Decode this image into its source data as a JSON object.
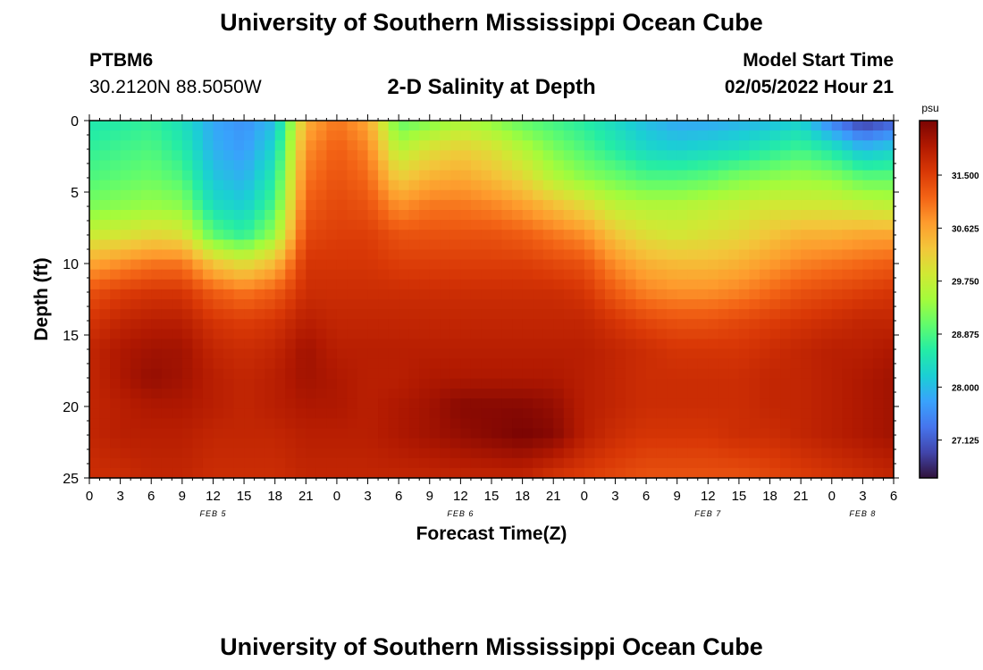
{
  "header": {
    "title": "University of Southern Mississippi Ocean Cube",
    "station_id": "PTBM6",
    "coordinates": "30.2120N  88.5050W",
    "model_start_label": "Model Start Time",
    "model_start_value": "02/05/2022 Hour 21"
  },
  "footer": {
    "title": "University of Southern Mississippi Ocean Cube"
  },
  "colors": {
    "colormap": [
      "#30123b",
      "#4145ab",
      "#4675ed",
      "#39a2fc",
      "#1bcfd4",
      "#24eca6",
      "#61fc6c",
      "#a4fc3b",
      "#d1e834",
      "#f3c63a",
      "#fe9b2d",
      "#f36315",
      "#d93806",
      "#b11901",
      "#7a0403"
    ]
  },
  "chart_data": {
    "type": "heatmap",
    "title": "2-D Salinity at Depth",
    "xlabel": "Forecast Time(Z)",
    "ylabel": "Depth (ft)",
    "x_tick_labels": [
      "0",
      "3",
      "6",
      "9",
      "12",
      "15",
      "18",
      "21",
      "0",
      "3",
      "6",
      "9",
      "12",
      "15",
      "18",
      "21",
      "0",
      "3",
      "6",
      "9",
      "12",
      "15",
      "18",
      "21",
      "0",
      "3",
      "6"
    ],
    "x_range_hours": [
      0,
      78
    ],
    "date_labels": [
      {
        "text": "FEB 5",
        "hour": 12
      },
      {
        "text": "FEB 6",
        "hour": 36
      },
      {
        "text": "FEB 7",
        "hour": 60
      },
      {
        "text": "FEB 8",
        "hour": 75
      }
    ],
    "y_range_ft": [
      0,
      25
    ],
    "y_ticks": [
      0,
      5,
      10,
      15,
      20,
      25
    ],
    "colorbar": {
      "unit": "psu",
      "range": [
        26.5,
        32.4
      ],
      "ticks": [
        "31.500",
        "30.625",
        "29.750",
        "28.875",
        "28.000",
        "27.125"
      ],
      "tick_values": [
        31.5,
        30.625,
        29.75,
        28.875,
        28.0,
        27.125
      ]
    },
    "salinity_grid": {
      "x_hours": [
        0,
        3,
        6,
        9,
        12,
        15,
        18,
        21,
        24,
        27,
        30,
        33,
        36,
        39,
        42,
        45,
        48,
        51,
        54,
        57,
        60,
        63,
        66,
        69,
        72,
        75,
        78
      ],
      "depths_ft": [
        0,
        2,
        4,
        6,
        8,
        10,
        12,
        14,
        16,
        18,
        20,
        22,
        25
      ],
      "values": [
        [
          28.5,
          28.6,
          28.7,
          28.4,
          27.8,
          27.6,
          28.0,
          30.5,
          31.0,
          30.6,
          29.0,
          29.2,
          29.5,
          29.3,
          29.0,
          28.8,
          28.6,
          28.3,
          28.0,
          27.8,
          27.8,
          27.9,
          28.0,
          28.2,
          27.4,
          26.8,
          27.1
        ],
        [
          28.7,
          28.8,
          28.9,
          28.6,
          27.9,
          27.7,
          28.3,
          30.8,
          31.2,
          30.9,
          29.6,
          30.0,
          30.2,
          30.0,
          29.6,
          29.2,
          28.9,
          28.6,
          28.3,
          28.2,
          28.3,
          28.4,
          28.6,
          28.8,
          28.5,
          28.0,
          28.2
        ],
        [
          28.9,
          29.0,
          29.1,
          28.9,
          28.1,
          27.9,
          28.6,
          31.0,
          31.3,
          31.1,
          30.2,
          30.5,
          30.6,
          30.4,
          30.1,
          29.6,
          29.3,
          29.1,
          28.9,
          28.9,
          29.0,
          29.2,
          29.3,
          29.4,
          29.3,
          29.0,
          29.0
        ],
        [
          29.2,
          29.3,
          29.4,
          29.3,
          28.4,
          28.2,
          28.9,
          31.2,
          31.4,
          31.3,
          30.8,
          31.0,
          31.0,
          30.9,
          30.7,
          30.4,
          30.1,
          29.7,
          29.6,
          29.6,
          29.7,
          29.8,
          29.9,
          29.9,
          29.9,
          29.8,
          29.7
        ],
        [
          29.8,
          29.9,
          30.1,
          30.0,
          29.0,
          28.7,
          29.4,
          31.4,
          31.5,
          31.5,
          31.3,
          31.3,
          31.3,
          31.3,
          31.2,
          31.0,
          30.8,
          30.3,
          30.0,
          29.9,
          30.0,
          30.1,
          30.3,
          30.5,
          30.5,
          30.6,
          30.6
        ],
        [
          30.6,
          30.8,
          31.0,
          31.0,
          30.3,
          30.0,
          30.4,
          31.6,
          31.6,
          31.6,
          31.5,
          31.5,
          31.5,
          31.5,
          31.5,
          31.4,
          31.3,
          30.8,
          30.5,
          30.4,
          30.4,
          30.5,
          30.7,
          30.9,
          31.0,
          31.1,
          31.2
        ],
        [
          31.3,
          31.5,
          31.6,
          31.6,
          31.2,
          31.0,
          31.2,
          31.7,
          31.7,
          31.7,
          31.7,
          31.7,
          31.7,
          31.7,
          31.7,
          31.7,
          31.6,
          31.2,
          30.9,
          30.8,
          30.8,
          30.9,
          31.1,
          31.3,
          31.4,
          31.5,
          31.6
        ],
        [
          31.6,
          31.8,
          31.9,
          31.9,
          31.6,
          31.5,
          31.6,
          31.9,
          31.8,
          31.8,
          31.8,
          31.8,
          31.8,
          31.8,
          31.8,
          31.8,
          31.8,
          31.6,
          31.4,
          31.3,
          31.3,
          31.4,
          31.5,
          31.6,
          31.7,
          31.8,
          31.8
        ],
        [
          31.8,
          32.0,
          32.1,
          32.1,
          31.8,
          31.7,
          31.8,
          32.1,
          31.9,
          31.9,
          31.9,
          31.9,
          31.9,
          31.9,
          31.9,
          31.9,
          31.9,
          31.8,
          31.7,
          31.6,
          31.6,
          31.6,
          31.7,
          31.8,
          31.9,
          31.9,
          32.0
        ],
        [
          31.8,
          32.0,
          32.2,
          32.1,
          31.9,
          31.8,
          31.9,
          32.1,
          32.0,
          31.9,
          31.9,
          32.0,
          32.0,
          32.0,
          32.0,
          32.0,
          31.9,
          31.8,
          31.7,
          31.7,
          31.7,
          31.7,
          31.8,
          31.8,
          31.9,
          32.0,
          32.1
        ],
        [
          31.8,
          31.9,
          32.0,
          32.0,
          31.9,
          31.8,
          31.9,
          32.0,
          32.0,
          31.9,
          32.0,
          32.1,
          32.3,
          32.3,
          32.3,
          32.2,
          31.9,
          31.8,
          31.7,
          31.7,
          31.7,
          31.7,
          31.8,
          31.8,
          31.9,
          32.0,
          32.1
        ],
        [
          31.8,
          31.9,
          31.9,
          31.9,
          31.8,
          31.8,
          31.8,
          31.9,
          31.9,
          31.9,
          32.0,
          32.1,
          32.2,
          32.3,
          32.4,
          32.3,
          31.9,
          31.7,
          31.6,
          31.6,
          31.6,
          31.7,
          31.7,
          31.8,
          31.9,
          32.0,
          32.1
        ],
        [
          31.7,
          31.7,
          31.8,
          31.8,
          31.7,
          31.7,
          31.7,
          31.8,
          31.8,
          31.8,
          31.8,
          31.8,
          31.8,
          31.8,
          31.8,
          31.6,
          31.5,
          31.4,
          31.3,
          31.3,
          31.3,
          31.3,
          31.4,
          31.5,
          31.6,
          31.7,
          31.8
        ]
      ]
    }
  }
}
